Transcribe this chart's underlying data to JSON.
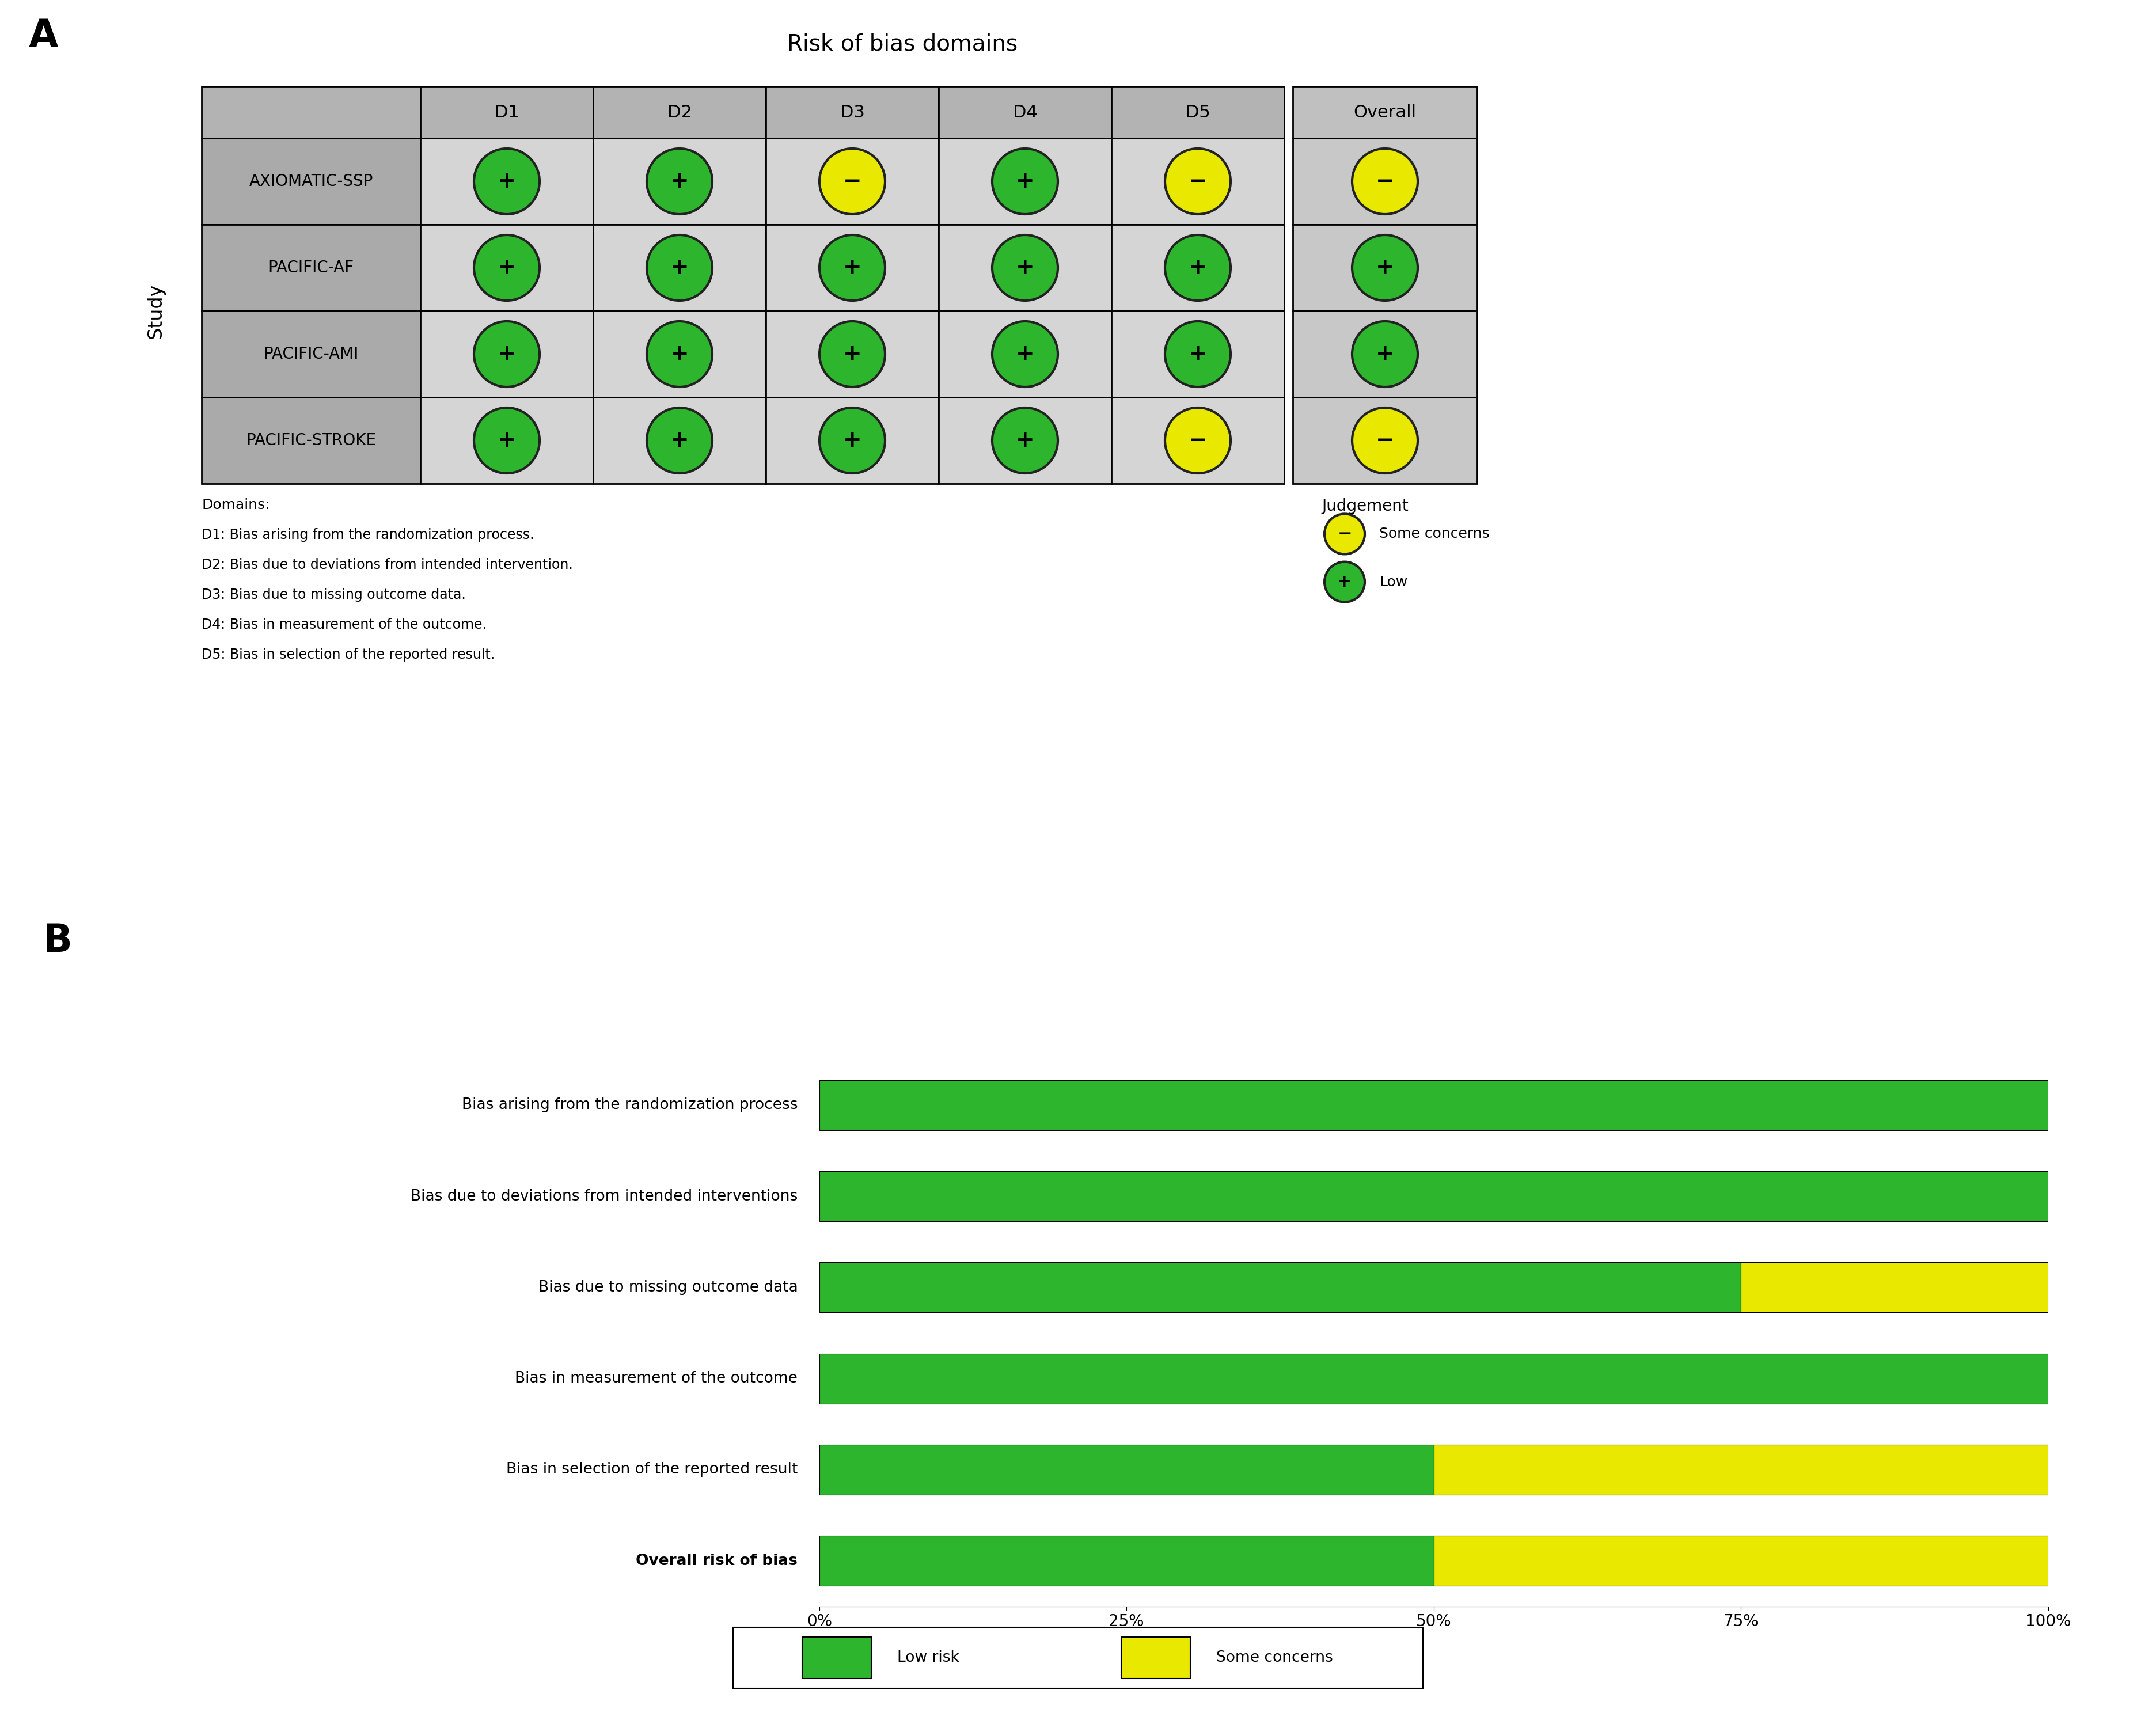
{
  "panel_A_title": "Risk of bias domains",
  "domains": [
    "D1",
    "D2",
    "D3",
    "D4",
    "D5",
    "Overall"
  ],
  "studies": [
    "AXIOMATIC-SSP",
    "PACIFIC-AF",
    "PACIFIC-AMI",
    "PACIFIC-STROKE"
  ],
  "judgements": [
    [
      "+",
      "+",
      "-",
      "+",
      "-",
      "-"
    ],
    [
      "+",
      "+",
      "+",
      "+",
      "+",
      "+"
    ],
    [
      "+",
      "+",
      "+",
      "+",
      "+",
      "+"
    ],
    [
      "+",
      "+",
      "+",
      "+",
      "-",
      "-"
    ]
  ],
  "green_color": "#2db62d",
  "yellow_color": "#e8e800",
  "header_bg": "#b3b3b3",
  "row_bg": "#aaaaaa",
  "cell_bg_light": "#d5d5d5",
  "cell_bg_overall": "#c8c8c8",
  "domain_descriptions": [
    "D1: Bias arising from the randomization process.",
    "D2: Bias due to deviations from intended intervention.",
    "D3: Bias due to missing outcome data.",
    "D4: Bias in measurement of the outcome.",
    "D5: Bias in selection of the reported result."
  ],
  "panel_B_bars": [
    {
      "label": "Bias arising from the randomization process",
      "low": 100,
      "some": 0,
      "bold": false
    },
    {
      "label": "Bias due to deviations from intended interventions",
      "low": 100,
      "some": 0,
      "bold": false
    },
    {
      "label": "Bias due to missing outcome data",
      "low": 75,
      "some": 25,
      "bold": false
    },
    {
      "label": "Bias in measurement of the outcome",
      "low": 100,
      "some": 0,
      "bold": false
    },
    {
      "label": "Bias in selection of the reported result",
      "low": 50,
      "some": 50,
      "bold": false
    },
    {
      "label": "Overall risk of bias",
      "low": 50,
      "some": 50,
      "bold": true
    }
  ],
  "xticks": [
    "0%",
    "25%",
    "50%",
    "75%",
    "100%"
  ],
  "xtick_vals": [
    0,
    25,
    50,
    75,
    100
  ],
  "legend_low_label": "Low risk",
  "legend_some_label": "Some concerns"
}
